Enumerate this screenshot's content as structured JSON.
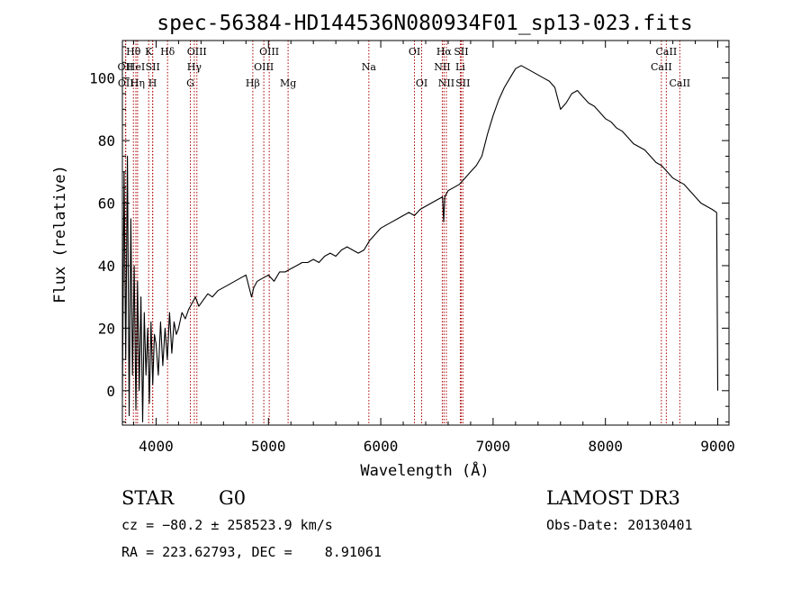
{
  "info": {
    "object_class": "STAR",
    "subclass": "G0",
    "survey": "LAMOST DR3",
    "redshift": "cz = −80.2 ± 258523.9 km/s",
    "obs_date": "Obs-Date: 20130401",
    "coords": "RA = 223.62793, DEC =    8.91061"
  },
  "chart_data": {
    "type": "line",
    "title": "spec-56384-HD144536N080934F01_sp13-023.fits",
    "xlabel": "Wavelength (Å)",
    "ylabel": "Flux (relative)",
    "xlim": [
      3700,
      9100
    ],
    "ylim": [
      -11,
      112
    ],
    "xticks": [
      4000,
      5000,
      6000,
      7000,
      8000,
      9000
    ],
    "yticks": [
      0,
      20,
      40,
      60,
      80,
      100
    ],
    "grid": false,
    "line_color": "#000000",
    "marker_color": "#aa0000",
    "spectrum": {
      "x": [
        3700,
        3715,
        3730,
        3745,
        3760,
        3775,
        3790,
        3805,
        3820,
        3835,
        3850,
        3865,
        3880,
        3895,
        3910,
        3925,
        3940,
        3955,
        3970,
        3985,
        4000,
        4020,
        4040,
        4060,
        4080,
        4100,
        4120,
        4140,
        4160,
        4180,
        4200,
        4230,
        4260,
        4290,
        4320,
        4350,
        4380,
        4420,
        4460,
        4500,
        4550,
        4600,
        4650,
        4700,
        4750,
        4800,
        4850,
        4870,
        4900,
        4950,
        5000,
        5050,
        5100,
        5150,
        5200,
        5250,
        5300,
        5350,
        5400,
        5450,
        5500,
        5550,
        5600,
        5650,
        5700,
        5750,
        5800,
        5850,
        5900,
        5950,
        6000,
        6050,
        6100,
        6150,
        6200,
        6250,
        6300,
        6350,
        6400,
        6450,
        6500,
        6550,
        6560,
        6570,
        6600,
        6650,
        6700,
        6750,
        6800,
        6850,
        6900,
        6950,
        7000,
        7050,
        7100,
        7150,
        7200,
        7250,
        7300,
        7350,
        7400,
        7450,
        7500,
        7550,
        7600,
        7650,
        7700,
        7750,
        7800,
        7850,
        7900,
        7950,
        8000,
        8050,
        8100,
        8150,
        8200,
        8250,
        8300,
        8350,
        8400,
        8450,
        8500,
        8550,
        8600,
        8650,
        8700,
        8750,
        8800,
        8850,
        8900,
        8950,
        8990,
        9000
      ],
      "y": [
        -2,
        70,
        10,
        75,
        -8,
        55,
        5,
        40,
        -6,
        35,
        0,
        30,
        -10,
        25,
        5,
        20,
        -4,
        22,
        2,
        18,
        15,
        5,
        22,
        8,
        20,
        10,
        25,
        12,
        22,
        18,
        20,
        25,
        23,
        26,
        28,
        30,
        27,
        29,
        31,
        30,
        32,
        33,
        34,
        35,
        36,
        37,
        30,
        33,
        35,
        36,
        37,
        35,
        38,
        38,
        39,
        40,
        41,
        41,
        42,
        41,
        43,
        44,
        43,
        45,
        46,
        45,
        44,
        45,
        48,
        50,
        52,
        53,
        54,
        55,
        56,
        57,
        56,
        58,
        59,
        60,
        61,
        62,
        54,
        62,
        64,
        65,
        66,
        68,
        70,
        72,
        75,
        82,
        88,
        93,
        97,
        100,
        103,
        104,
        103,
        102,
        101,
        100,
        99,
        97,
        90,
        92,
        95,
        96,
        94,
        92,
        91,
        89,
        87,
        86,
        84,
        83,
        81,
        79,
        78,
        77,
        75,
        73,
        72,
        70,
        68,
        67,
        66,
        64,
        62,
        60,
        59,
        58,
        57,
        0
      ]
    },
    "lines": [
      {
        "name": "OII",
        "wave": 3727,
        "row": 2
      },
      {
        "name": "OII",
        "wave": 3730,
        "row": 3
      },
      {
        "name": "Hθ",
        "wave": 3798,
        "row": 1
      },
      {
        "name": "HeI",
        "wave": 3820,
        "row": 2
      },
      {
        "name": "Hη",
        "wave": 3835,
        "row": 3
      },
      {
        "name": "K",
        "wave": 3934,
        "row": 1
      },
      {
        "name": "SII",
        "wave": 3970,
        "row": 2
      },
      {
        "name": "H",
        "wave": 3969,
        "row": 3
      },
      {
        "name": "Hδ",
        "wave": 4102,
        "row": 1
      },
      {
        "name": "OIII",
        "wave": 4363,
        "row": 1
      },
      {
        "name": "Hγ",
        "wave": 4340,
        "row": 2
      },
      {
        "name": "G",
        "wave": 4305,
        "row": 3
      },
      {
        "name": "OIII",
        "wave": 5007,
        "row": 1
      },
      {
        "name": "OIII",
        "wave": 4959,
        "row": 2
      },
      {
        "name": "Hβ",
        "wave": 4861,
        "row": 3
      },
      {
        "name": "Mg",
        "wave": 5175,
        "row": 3
      },
      {
        "name": "Na",
        "wave": 5894,
        "row": 2
      },
      {
        "name": "OI",
        "wave": 6300,
        "row": 1
      },
      {
        "name": "OI",
        "wave": 6364,
        "row": 3
      },
      {
        "name": "Hα",
        "wave": 6563,
        "row": 1
      },
      {
        "name": "NII",
        "wave": 6548,
        "row": 2
      },
      {
        "name": "NII",
        "wave": 6584,
        "row": 3
      },
      {
        "name": "SII",
        "wave": 6716,
        "row": 1
      },
      {
        "name": "Li",
        "wave": 6708,
        "row": 2
      },
      {
        "name": "SII",
        "wave": 6731,
        "row": 3
      },
      {
        "name": "CaII",
        "wave": 8542,
        "row": 1
      },
      {
        "name": "CaII",
        "wave": 8498,
        "row": 2
      },
      {
        "name": "CaII",
        "wave": 8662,
        "row": 3
      }
    ]
  }
}
